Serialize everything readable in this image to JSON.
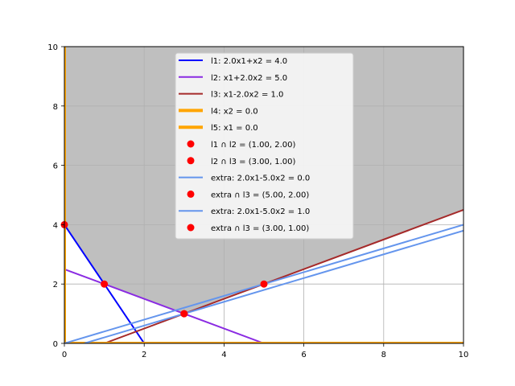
{
  "chart_data": {
    "type": "line",
    "title": "",
    "xlabel": "",
    "ylabel": "",
    "xlim": [
      0,
      10
    ],
    "ylim": [
      0,
      10
    ],
    "xticks": [
      0,
      2,
      4,
      6,
      8,
      10
    ],
    "yticks": [
      0,
      2,
      4,
      6,
      8,
      10
    ],
    "grid": true,
    "legend_position": "top-center",
    "shaded_region": {
      "color": "#bfbfbf",
      "description_points": [
        [
          0,
          10
        ],
        [
          10,
          10
        ],
        [
          10,
          4.5
        ],
        [
          5,
          2
        ],
        [
          3,
          1
        ],
        [
          1,
          2
        ],
        [
          0,
          4
        ]
      ]
    },
    "series": [
      {
        "name": "l1: 2.0x1+x2 = 4.0",
        "kind": "line",
        "color": "#0000ff",
        "x": [
          0,
          2
        ],
        "y": [
          4,
          0
        ]
      },
      {
        "name": "l2: x1+2.0x2 = 5.0",
        "kind": "line",
        "color": "#8a2be2",
        "x": [
          0,
          5
        ],
        "y": [
          2.5,
          0
        ]
      },
      {
        "name": "l3: x1-2.0x2 = 1.0",
        "kind": "line",
        "color": "#a52a2a",
        "x": [
          1,
          10
        ],
        "y": [
          0,
          4.5
        ]
      },
      {
        "name": "l4: x2 = 0.0",
        "kind": "line",
        "color": "#ffa500",
        "x": [
          0,
          10
        ],
        "y": [
          0,
          0
        ]
      },
      {
        "name": "l5: x1 = 0.0",
        "kind": "line",
        "color": "#ffa500",
        "x": [
          0,
          0
        ],
        "y": [
          0,
          10
        ]
      },
      {
        "name": "l1 ∩ l2 = (1.00, 2.00)",
        "kind": "point",
        "color": "#ff0000",
        "x": [
          1
        ],
        "y": [
          2
        ]
      },
      {
        "name": "l2 ∩ l3 = (3.00, 1.00)",
        "kind": "point",
        "color": "#ff0000",
        "x": [
          3
        ],
        "y": [
          1
        ]
      },
      {
        "name": "extra: 2.0x1-5.0x2 = 0.0",
        "kind": "line",
        "color": "#6495ed",
        "x": [
          0,
          10
        ],
        "y": [
          0,
          4
        ]
      },
      {
        "name": "extra ∩ l3 = (5.00, 2.00)",
        "kind": "point",
        "color": "#ff0000",
        "x": [
          5
        ],
        "y": [
          2
        ]
      },
      {
        "name": "extra: 2.0x1-5.0x2 = 1.0",
        "kind": "line",
        "color": "#6495ed",
        "x": [
          0.5,
          10
        ],
        "y": [
          0,
          3.8
        ]
      },
      {
        "name": "extra ∩ l3 = (3.00, 1.00)",
        "kind": "point",
        "color": "#ff0000",
        "x": [
          3
        ],
        "y": [
          1
        ]
      }
    ],
    "extra_points": [
      {
        "color": "#ff0000",
        "x": 0,
        "y": 4
      }
    ]
  }
}
